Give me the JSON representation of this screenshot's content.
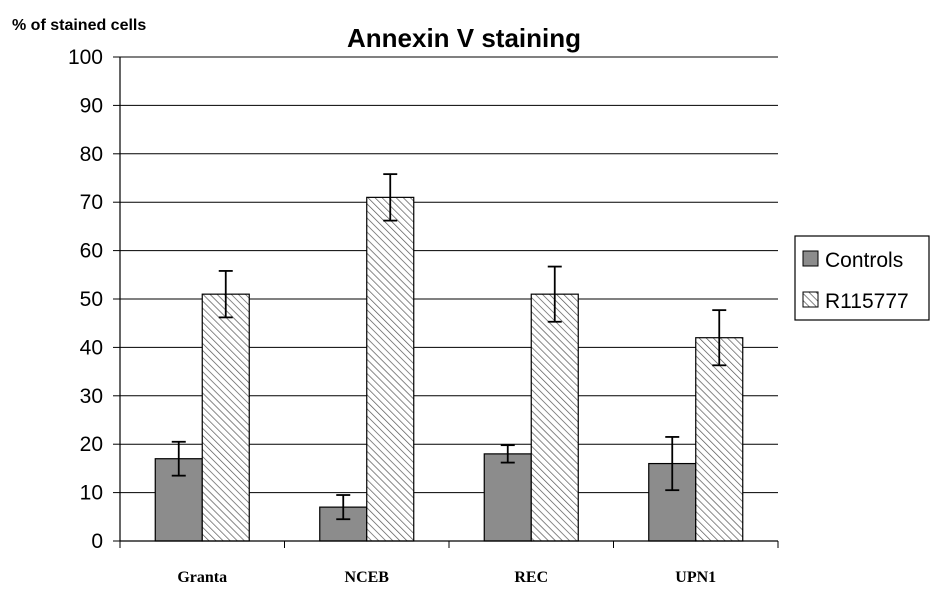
{
  "chart_data": {
    "type": "bar",
    "title": "Annexin V staining",
    "ylabel": "% of stained cells",
    "xlabel": "",
    "ylim": [
      0,
      100
    ],
    "yticks": [
      0,
      10,
      20,
      30,
      40,
      50,
      60,
      70,
      80,
      90,
      100
    ],
    "grid": true,
    "legend_position": "right",
    "categories": [
      "Granta",
      "NCEB",
      "REC",
      "UPN1"
    ],
    "series": [
      {
        "name": "Controls",
        "values": [
          17,
          7,
          18,
          16
        ],
        "error": [
          3.5,
          2.5,
          1.8,
          5.5
        ],
        "color": "#8c8c8c",
        "pattern": "solid"
      },
      {
        "name": "R115777",
        "values": [
          51,
          71,
          51,
          42
        ],
        "error": [
          4.8,
          4.8,
          5.7,
          5.7
        ],
        "color": "#ffffff",
        "pattern": "diagonal-hatch"
      }
    ]
  }
}
